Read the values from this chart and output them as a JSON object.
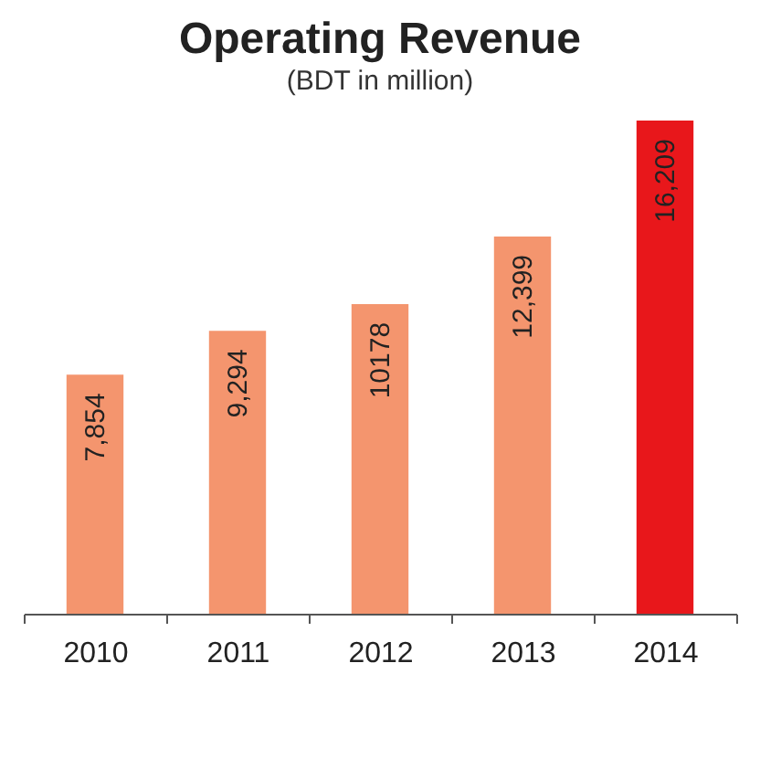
{
  "chart_data": {
    "type": "bar",
    "title": "Operating Revenue",
    "subtitle": "(BDT in million)",
    "categories": [
      "2010",
      "2011",
      "2012",
      "2013",
      "2014"
    ],
    "values": [
      7854,
      9294,
      10178,
      12399,
      16209
    ],
    "colors": [
      "#f4956e",
      "#f4956e",
      "#f4956e",
      "#f4956e",
      "#e8171b"
    ],
    "value_labels": [
      "7,854",
      "9,294",
      "10178",
      "12,399",
      "16,209"
    ],
    "grid": false
  }
}
